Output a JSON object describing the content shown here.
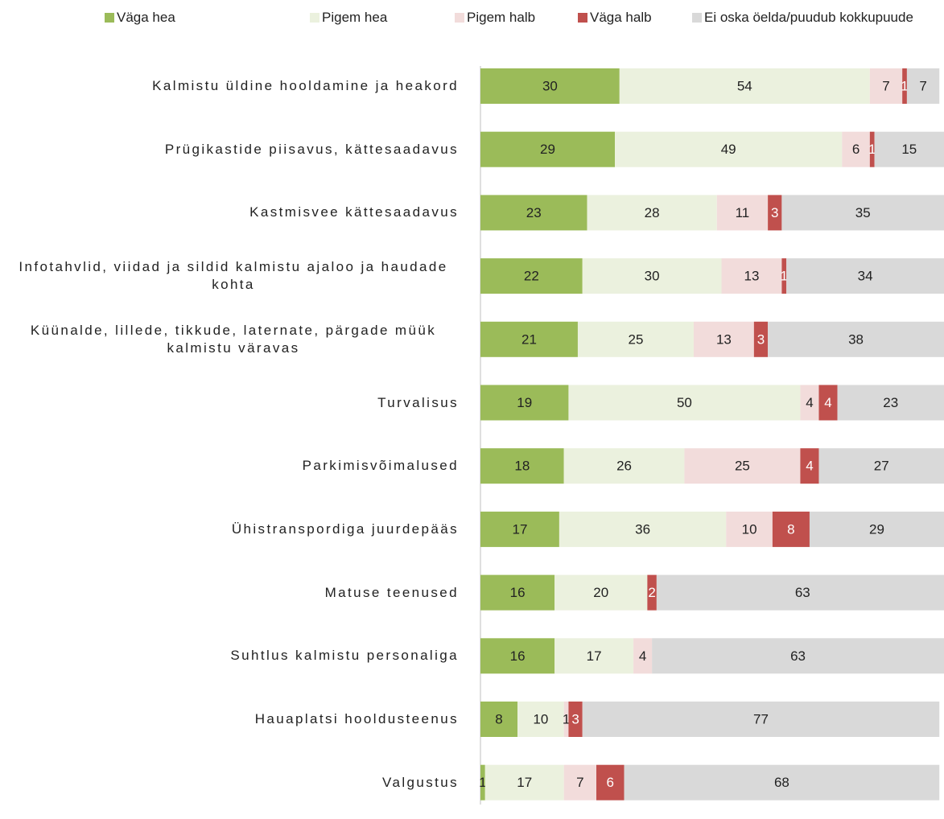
{
  "chart_data": {
    "type": "stacked_barh",
    "categories": [
      "Kalmistu üldine hooldamine ja heakord",
      "Prügikastide piisavus, kättesaadavus",
      "Kastmisvee kättesaadavus",
      "Infotahvlid, viidad ja sildid kalmistu ajaloo ja haudade kohta",
      "Küünalde, lillede, tikkude, laternate, pärgade müük kalmistu väravas",
      "Turvalisus",
      "Parkimisvõimalused",
      "Ühistranspordiga juurdepääs",
      "Matuse teenused",
      "Suhtlus kalmistu personaliga",
      "Hauaplatsi hooldusteenus",
      "Valgustus"
    ],
    "series": [
      {
        "name": "Väga hea",
        "color": "#9bbb59",
        "values": [
          30,
          29,
          23,
          22,
          21,
          19,
          18,
          17,
          16,
          16,
          8,
          1
        ]
      },
      {
        "name": "Pigem hea",
        "color": "#ebf1de",
        "values": [
          54,
          49,
          28,
          30,
          25,
          50,
          26,
          36,
          20,
          17,
          10,
          17
        ]
      },
      {
        "name": "Pigem halb",
        "color": "#f2dcdb",
        "values": [
          7,
          6,
          11,
          13,
          13,
          4,
          25,
          10,
          null,
          4,
          1,
          7
        ]
      },
      {
        "name": "Väga halb",
        "color": "#c0504d",
        "values": [
          1,
          1,
          3,
          1,
          3,
          4,
          4,
          8,
          2,
          null,
          3,
          6
        ]
      },
      {
        "name": "Ei oska öelda/puudub kokkupuude",
        "color": "#d9d9d9",
        "values": [
          7,
          15,
          35,
          34,
          38,
          23,
          27,
          29,
          63,
          63,
          77,
          68
        ]
      }
    ],
    "xlim": [
      0,
      100
    ]
  }
}
